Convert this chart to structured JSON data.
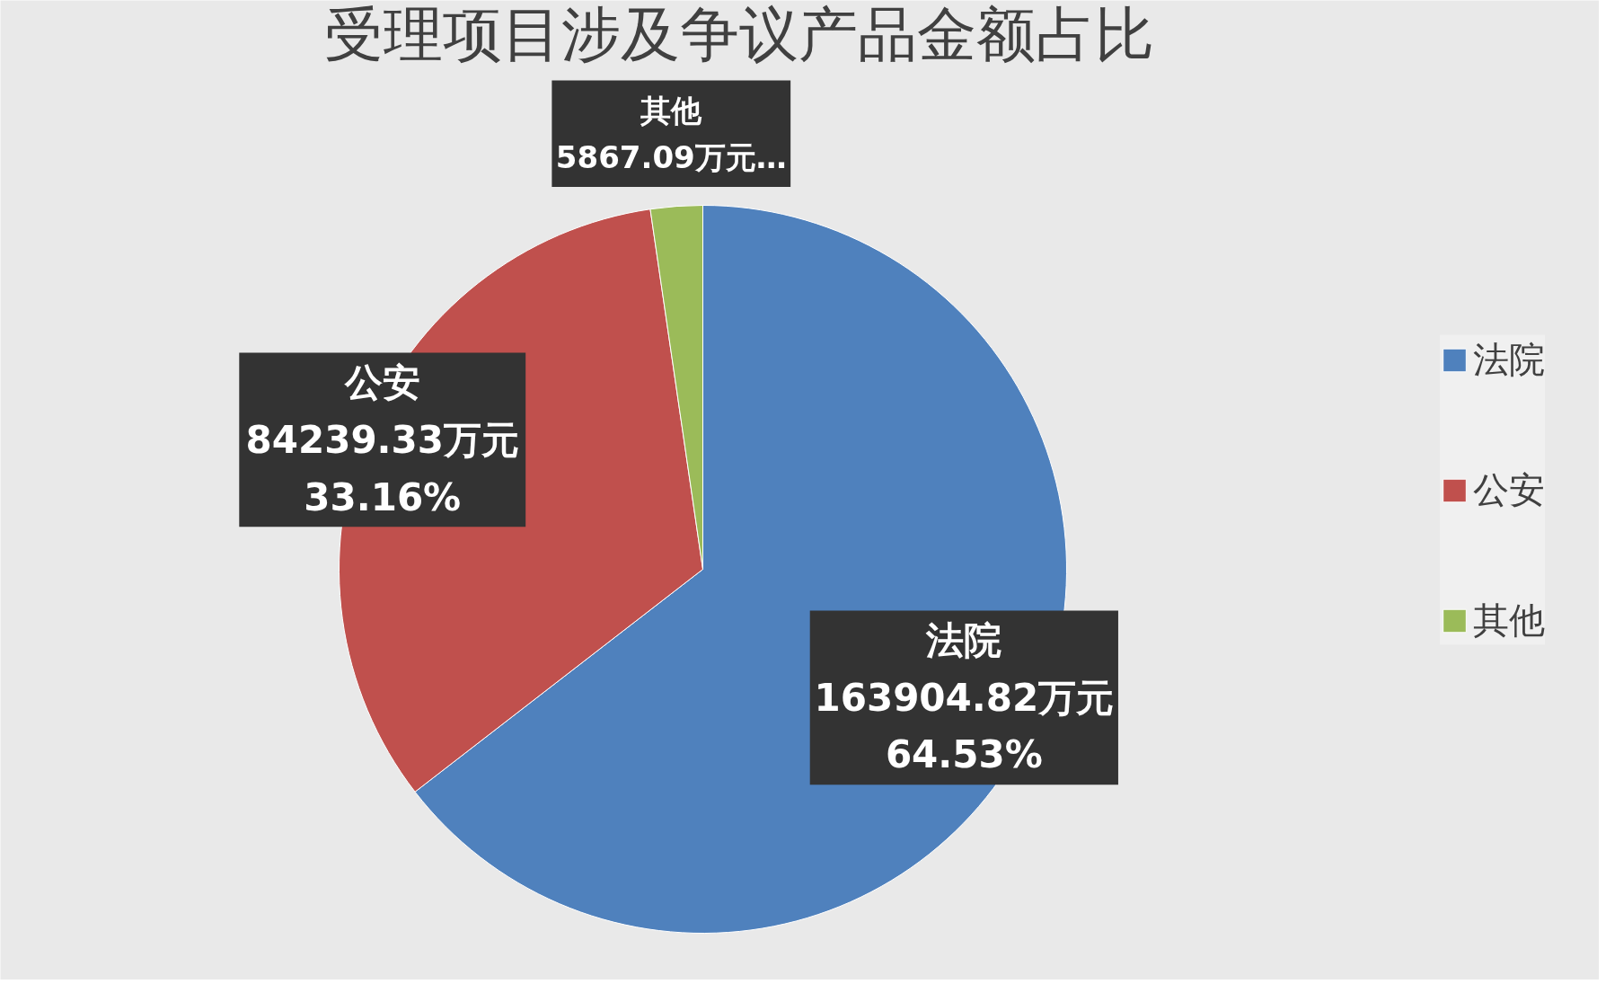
{
  "chart_data": {
    "type": "pie",
    "title": "受理项目涉及争议产品金额占比",
    "categories": [
      "法院",
      "公安",
      "其他"
    ],
    "values": [
      163904.82,
      84239.33,
      5867.09
    ],
    "colors": [
      "#4f81bd",
      "#c0504d",
      "#9bbb59"
    ],
    "value_labels": [
      "法院\n163904.82万元\n64.53%",
      "公安\n84239.33万元\n33.16%",
      "其他\n5867.09万元…"
    ],
    "legend": "right"
  }
}
